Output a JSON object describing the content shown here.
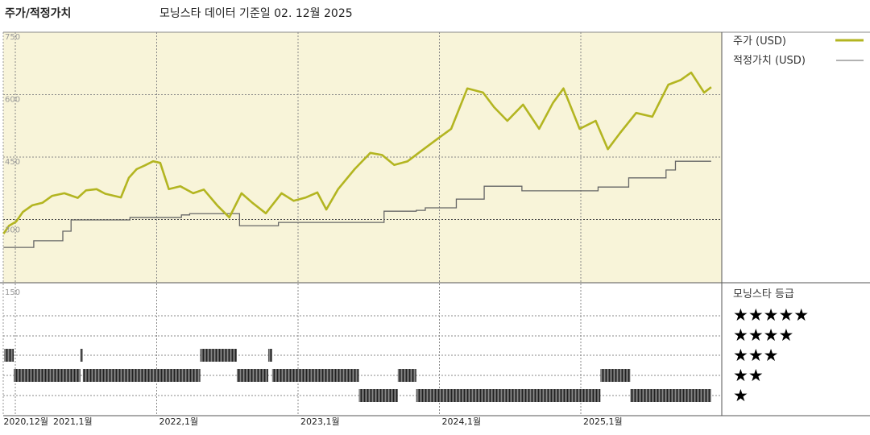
{
  "header": {
    "title": "주가/적정가치",
    "subtitle": "모닝스타 데이터 기준일 02. 12월 2025"
  },
  "legend": {
    "price": "주가 (USD)",
    "fair_value": "적정가치 (USD)",
    "rating_title": "모닝스타 등급",
    "stars": [
      "★★★★★",
      "★★★★",
      "★★★",
      "★★",
      "★"
    ]
  },
  "colors": {
    "price": "#b3b521",
    "fair_value": "#666666",
    "plot_bg": "#f8f4d9",
    "rating_bar": "#444444"
  },
  "chart_data": [
    {
      "type": "line",
      "title": "주가/적정가치",
      "yticks": [
        "750",
        "600",
        "450",
        "300"
      ],
      "ylim": [
        150,
        750
      ],
      "xtick_labels": [
        "2020,12월",
        "2021,1월",
        "2022,1월",
        "2023,1월",
        "2024,1월",
        "2025,1월"
      ],
      "xlim": [
        "2020-11-30",
        "2025-12-31"
      ],
      "grid": true,
      "legend_position": "right",
      "series": [
        {
          "name": "주가 (USD)",
          "points": [
            [
              "2020-12-01",
              266
            ],
            [
              "2020-12-15",
              285
            ],
            [
              "2021-01-03",
              295
            ],
            [
              "2021-01-20",
              318
            ],
            [
              "2021-02-14",
              334
            ],
            [
              "2021-03-10",
              340
            ],
            [
              "2021-04-05",
              357
            ],
            [
              "2021-05-06",
              363
            ],
            [
              "2021-06-10",
              352
            ],
            [
              "2021-07-01",
              370
            ],
            [
              "2021-07-28",
              373
            ],
            [
              "2021-08-20",
              362
            ],
            [
              "2021-09-30",
              353
            ],
            [
              "2021-10-20",
              400
            ],
            [
              "2021-11-10",
              421
            ],
            [
              "2021-12-01",
              430
            ],
            [
              "2021-12-22",
              440
            ],
            [
              "2022-01-10",
              436
            ],
            [
              "2022-02-02",
              373
            ],
            [
              "2022-03-01",
              380
            ],
            [
              "2022-04-04",
              363
            ],
            [
              "2022-05-01",
              372
            ],
            [
              "2022-06-05",
              334
            ],
            [
              "2022-07-06",
              305
            ],
            [
              "2022-08-07",
              363
            ],
            [
              "2022-09-05",
              340
            ],
            [
              "2022-10-09",
              315
            ],
            [
              "2022-11-19",
              363
            ],
            [
              "2022-12-20",
              345
            ],
            [
              "2023-01-21",
              353
            ],
            [
              "2023-02-20",
              365
            ],
            [
              "2023-03-13",
              324
            ],
            [
              "2023-04-13",
              373
            ],
            [
              "2023-05-25",
              421
            ],
            [
              "2023-07-05",
              460
            ],
            [
              "2023-08-05",
              455
            ],
            [
              "2023-09-06",
              431
            ],
            [
              "2023-10-10",
              440
            ],
            [
              "2023-11-08",
              460
            ],
            [
              "2023-12-19",
              489
            ],
            [
              "2024-02-01",
              518
            ],
            [
              "2024-03-12",
              615
            ],
            [
              "2024-04-22",
              605
            ],
            [
              "2024-05-20",
              570
            ],
            [
              "2024-06-24",
              537
            ],
            [
              "2024-08-04",
              576
            ],
            [
              "2024-09-15",
              518
            ],
            [
              "2024-10-20",
              580
            ],
            [
              "2024-11-17",
              615
            ],
            [
              "2024-12-28",
              518
            ],
            [
              "2025-02-09",
              537
            ],
            [
              "2025-03-10",
              469
            ],
            [
              "2025-04-11",
              508
            ],
            [
              "2025-05-22",
              556
            ],
            [
              "2025-07-03",
              547
            ],
            [
              "2025-08-14",
              624
            ],
            [
              "2025-09-15",
              635
            ],
            [
              "2025-10-12",
              653
            ],
            [
              "2025-11-15",
              605
            ],
            [
              "2025-12-03",
              618
            ]
          ]
        },
        {
          "name": "적정가치 (USD)",
          "steps": [
            [
              "2020-12-01",
              233
            ],
            [
              "2021-02-18",
              249
            ],
            [
              "2021-05-02",
              272
            ],
            [
              "2021-05-23",
              299
            ],
            [
              "2021-10-23",
              305
            ],
            [
              "2022-03-04",
              311
            ],
            [
              "2022-03-25",
              314
            ],
            [
              "2022-08-02",
              285
            ],
            [
              "2022-11-11",
              293
            ],
            [
              "2023-08-10",
              320
            ],
            [
              "2023-11-02",
              322
            ],
            [
              "2023-11-25",
              328
            ],
            [
              "2024-02-14",
              349
            ],
            [
              "2024-04-25",
              380
            ],
            [
              "2024-08-01",
              369
            ],
            [
              "2025-02-15",
              378
            ],
            [
              "2025-05-03",
              400
            ],
            [
              "2025-08-08",
              419
            ],
            [
              "2025-09-02",
              440
            ],
            [
              "2025-12-03",
              440
            ]
          ]
        }
      ]
    },
    {
      "type": "bar",
      "title": "모닝스타 등급",
      "yticks": [
        "150"
      ],
      "ylim": [
        0,
        5
      ],
      "periods": [
        {
          "start": "2020-12-03",
          "end": "2020-12-27",
          "stars": 3
        },
        {
          "start": "2020-12-27",
          "end": "2021-06-17",
          "stars": 2
        },
        {
          "start": "2021-06-17",
          "end": "2021-06-23",
          "stars": 3
        },
        {
          "start": "2021-06-23",
          "end": "2022-04-22",
          "stars": 2
        },
        {
          "start": "2022-04-22",
          "end": "2022-07-25",
          "stars": 3
        },
        {
          "start": "2022-07-25",
          "end": "2022-10-15",
          "stars": 2
        },
        {
          "start": "2022-10-15",
          "end": "2022-10-25",
          "stars": 3
        },
        {
          "start": "2022-10-25",
          "end": "2023-06-06",
          "stars": 2
        },
        {
          "start": "2023-06-06",
          "end": "2023-09-15",
          "stars": 1
        },
        {
          "start": "2023-09-15",
          "end": "2023-11-02",
          "stars": 2
        },
        {
          "start": "2023-11-02",
          "end": "2025-02-21",
          "stars": 1
        },
        {
          "start": "2025-02-21",
          "end": "2025-05-07",
          "stars": 2
        },
        {
          "start": "2025-05-07",
          "end": "2025-12-03",
          "stars": 1
        }
      ]
    }
  ]
}
